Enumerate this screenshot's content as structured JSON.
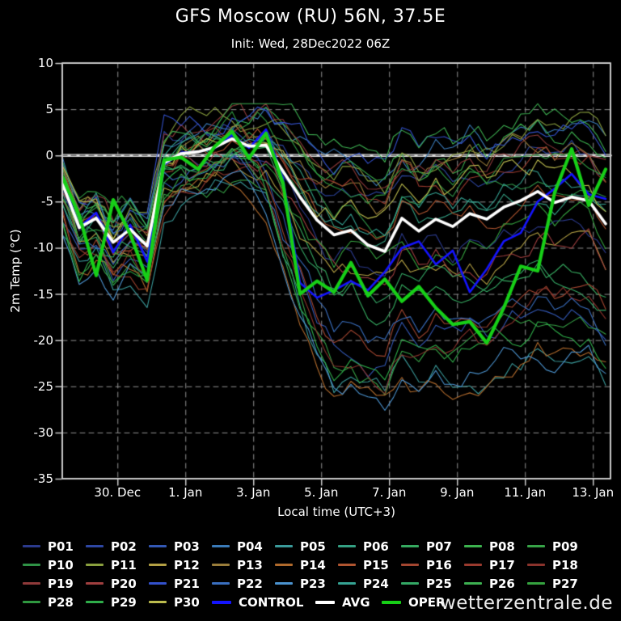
{
  "header": {
    "title": "GFS Moscow (RU) 56N, 37.5E",
    "subtitle": "Init: Wed, 28Dec2022 06Z"
  },
  "watermark": "wetterzentrale.de",
  "colors": {
    "background": "#000000",
    "frame": "#c8c8c8",
    "grid": "#909090",
    "zero_line": "#d9d9d9",
    "zero_dash": "#6e6e6e",
    "control": "#1414ff",
    "avg": "#ffffff",
    "oper": "#17cf17",
    "text": "#ffffff"
  },
  "chart_data": {
    "type": "line",
    "title": "GFS Moscow (RU) 56N, 37.5E",
    "subtitle": "Init: Wed, 28Dec2022 06Z",
    "xlabel": "Local time (UTC+3)",
    "ylabel": "2m Temp (°C)",
    "ylim": [
      -35,
      10
    ],
    "y_ticks": [
      10,
      5,
      0,
      -5,
      -10,
      -15,
      -20,
      -25,
      -30,
      -35
    ],
    "grid": "dashed, zero line solid",
    "legend_position": "below chart, 4 rows",
    "x_axis_note": "time from 28 Dec 09:00 local (init 06Z) to 13 Jan 09:00 local, 16 days",
    "x_range_days": [
      0,
      16.14
    ],
    "x_ticks": [
      {
        "label": "30. Dec",
        "day": 1.625
      },
      {
        "label": "1. Jan",
        "day": 3.625
      },
      {
        "label": "3. Jan",
        "day": 5.625
      },
      {
        "label": "5. Jan",
        "day": 7.625
      },
      {
        "label": "7. Jan",
        "day": 9.625
      },
      {
        "label": "9. Jan",
        "day": 11.625
      },
      {
        "label": "11. Jan",
        "day": 13.625
      },
      {
        "label": "13. Jan",
        "day": 15.625
      }
    ],
    "series_time": {
      "start_day": 0,
      "step_days": 0.5,
      "points": 33
    },
    "series": [
      {
        "name": "CONTROL",
        "color": "#1414ff",
        "width": 2.6,
        "values": [
          -2.5,
          -7.8,
          -6.2,
          -10.5,
          -7.5,
          -11.5,
          -1.0,
          0.3,
          0.4,
          0.8,
          2.2,
          0.8,
          2.8,
          -2.5,
          -13.8,
          -15.4,
          -14.6,
          -13.6,
          -14.6,
          -12.6,
          -10.0,
          -9.3,
          -11.8,
          -10.3,
          -14.8,
          -12.3,
          -9.3,
          -8.4,
          -5.0,
          -3.6,
          -2.0,
          -4.2,
          -4.7
        ]
      },
      {
        "name": "AVG",
        "color": "#ffffff",
        "width": 3.6,
        "values": [
          -3.0,
          -7.8,
          -6.8,
          -9.4,
          -8.0,
          -9.8,
          -0.8,
          0.2,
          0.4,
          0.9,
          1.8,
          1.0,
          1.1,
          -1.7,
          -4.5,
          -7.0,
          -8.6,
          -8.1,
          -9.7,
          -10.4,
          -6.8,
          -8.2,
          -6.9,
          -7.7,
          -6.3,
          -6.9,
          -5.6,
          -4.9,
          -3.9,
          -5.1,
          -4.5,
          -4.9,
          -7.4
        ]
      },
      {
        "name": "OPER",
        "color": "#17cf17",
        "width": 4.2,
        "values": [
          -2.3,
          -6.5,
          -13.0,
          -4.8,
          -8.5,
          -13.5,
          -0.5,
          -0.2,
          -1.5,
          1.0,
          2.6,
          -0.3,
          2.4,
          -3.0,
          -15.0,
          -13.6,
          -14.8,
          -11.6,
          -15.2,
          -13.4,
          -15.8,
          -14.2,
          -16.5,
          -18.3,
          -18.0,
          -20.3,
          -16.5,
          -12.0,
          -12.5,
          -4.0,
          0.7,
          -5.4,
          -1.5
        ]
      }
    ],
    "members": {
      "note": "30 perturbed ensemble members (spaghetti). Values approximated as avg + offset*spread + seeded wiggle, clamped to envelope read from plot.",
      "step_days": 0.25,
      "spread_profile": {
        "early": 2.3,
        "late": 8.5,
        "ramp_start_day": 5.5,
        "ramp_end_day": 8.0,
        "below_mean_factor": 1.5
      },
      "clamp": [
        -30.5,
        5.6
      ],
      "list": [
        {
          "name": "P01",
          "color": "#2b3a8c",
          "offset": -0.2,
          "seed": 11
        },
        {
          "name": "P02",
          "color": "#2e47a3",
          "offset": 0.5,
          "seed": 28
        },
        {
          "name": "P03",
          "color": "#3358b5",
          "offset": -0.9,
          "seed": 45
        },
        {
          "name": "P04",
          "color": "#3a7ab8",
          "offset": 1.0,
          "seed": 62
        },
        {
          "name": "P05",
          "color": "#3a9a9a",
          "offset": -1.3,
          "seed": 79
        },
        {
          "name": "P06",
          "color": "#34a083",
          "offset": 0.1,
          "seed": 96
        },
        {
          "name": "P07",
          "color": "#35a95f",
          "offset": -0.6,
          "seed": 113
        },
        {
          "name": "P08",
          "color": "#3cb24e",
          "offset": 0.8,
          "seed": 130
        },
        {
          "name": "P09",
          "color": "#37a347",
          "offset": -1.1,
          "seed": 147
        },
        {
          "name": "P10",
          "color": "#2f9246",
          "offset": 0.3,
          "seed": 164
        },
        {
          "name": "P11",
          "color": "#8aa03e",
          "offset": 0.9,
          "seed": 181
        },
        {
          "name": "P12",
          "color": "#b3a044",
          "offset": -0.4,
          "seed": 198
        },
        {
          "name": "P13",
          "color": "#9a7d3a",
          "offset": 0.6,
          "seed": 215
        },
        {
          "name": "P14",
          "color": "#b06a2c",
          "offset": -1.25,
          "seed": 232
        },
        {
          "name": "P15",
          "color": "#b05530",
          "offset": 0.15,
          "seed": 249
        },
        {
          "name": "P16",
          "color": "#a34630",
          "offset": -0.75,
          "seed": 266
        },
        {
          "name": "P17",
          "color": "#9a3a2e",
          "offset": 0.45,
          "seed": 283
        },
        {
          "name": "P18",
          "color": "#8a332c",
          "offset": -1.0,
          "seed": 300
        },
        {
          "name": "P19",
          "color": "#8f3a3a",
          "offset": 0.7,
          "seed": 317
        },
        {
          "name": "P20",
          "color": "#a03f3f",
          "offset": -0.3,
          "seed": 334
        },
        {
          "name": "P21",
          "color": "#3351cc",
          "offset": 0.95,
          "seed": 351
        },
        {
          "name": "P22",
          "color": "#3a6fc0",
          "offset": -0.85,
          "seed": 368
        },
        {
          "name": "P23",
          "color": "#4b93cf",
          "offset": -1.35,
          "seed": 385
        },
        {
          "name": "P24",
          "color": "#35a393",
          "offset": 0.25,
          "seed": 402
        },
        {
          "name": "P25",
          "color": "#34a865",
          "offset": -0.55,
          "seed": 419
        },
        {
          "name": "P26",
          "color": "#3db051",
          "offset": 1.1,
          "seed": 436
        },
        {
          "name": "P27",
          "color": "#35a23f",
          "offset": -0.15,
          "seed": 453
        },
        {
          "name": "P28",
          "color": "#2f9840",
          "offset": 0.55,
          "seed": 470
        },
        {
          "name": "P29",
          "color": "#2fae4a",
          "offset": -1.15,
          "seed": 487
        },
        {
          "name": "P30",
          "color": "#bcbc4e",
          "offset": 0.35,
          "seed": 504
        }
      ]
    }
  },
  "legend": {
    "bold_entries": [
      {
        "name": "CONTROL",
        "color": "#1414ff"
      },
      {
        "name": "AVG",
        "color": "#ffffff"
      },
      {
        "name": "OPER",
        "color": "#17cf17"
      }
    ]
  }
}
